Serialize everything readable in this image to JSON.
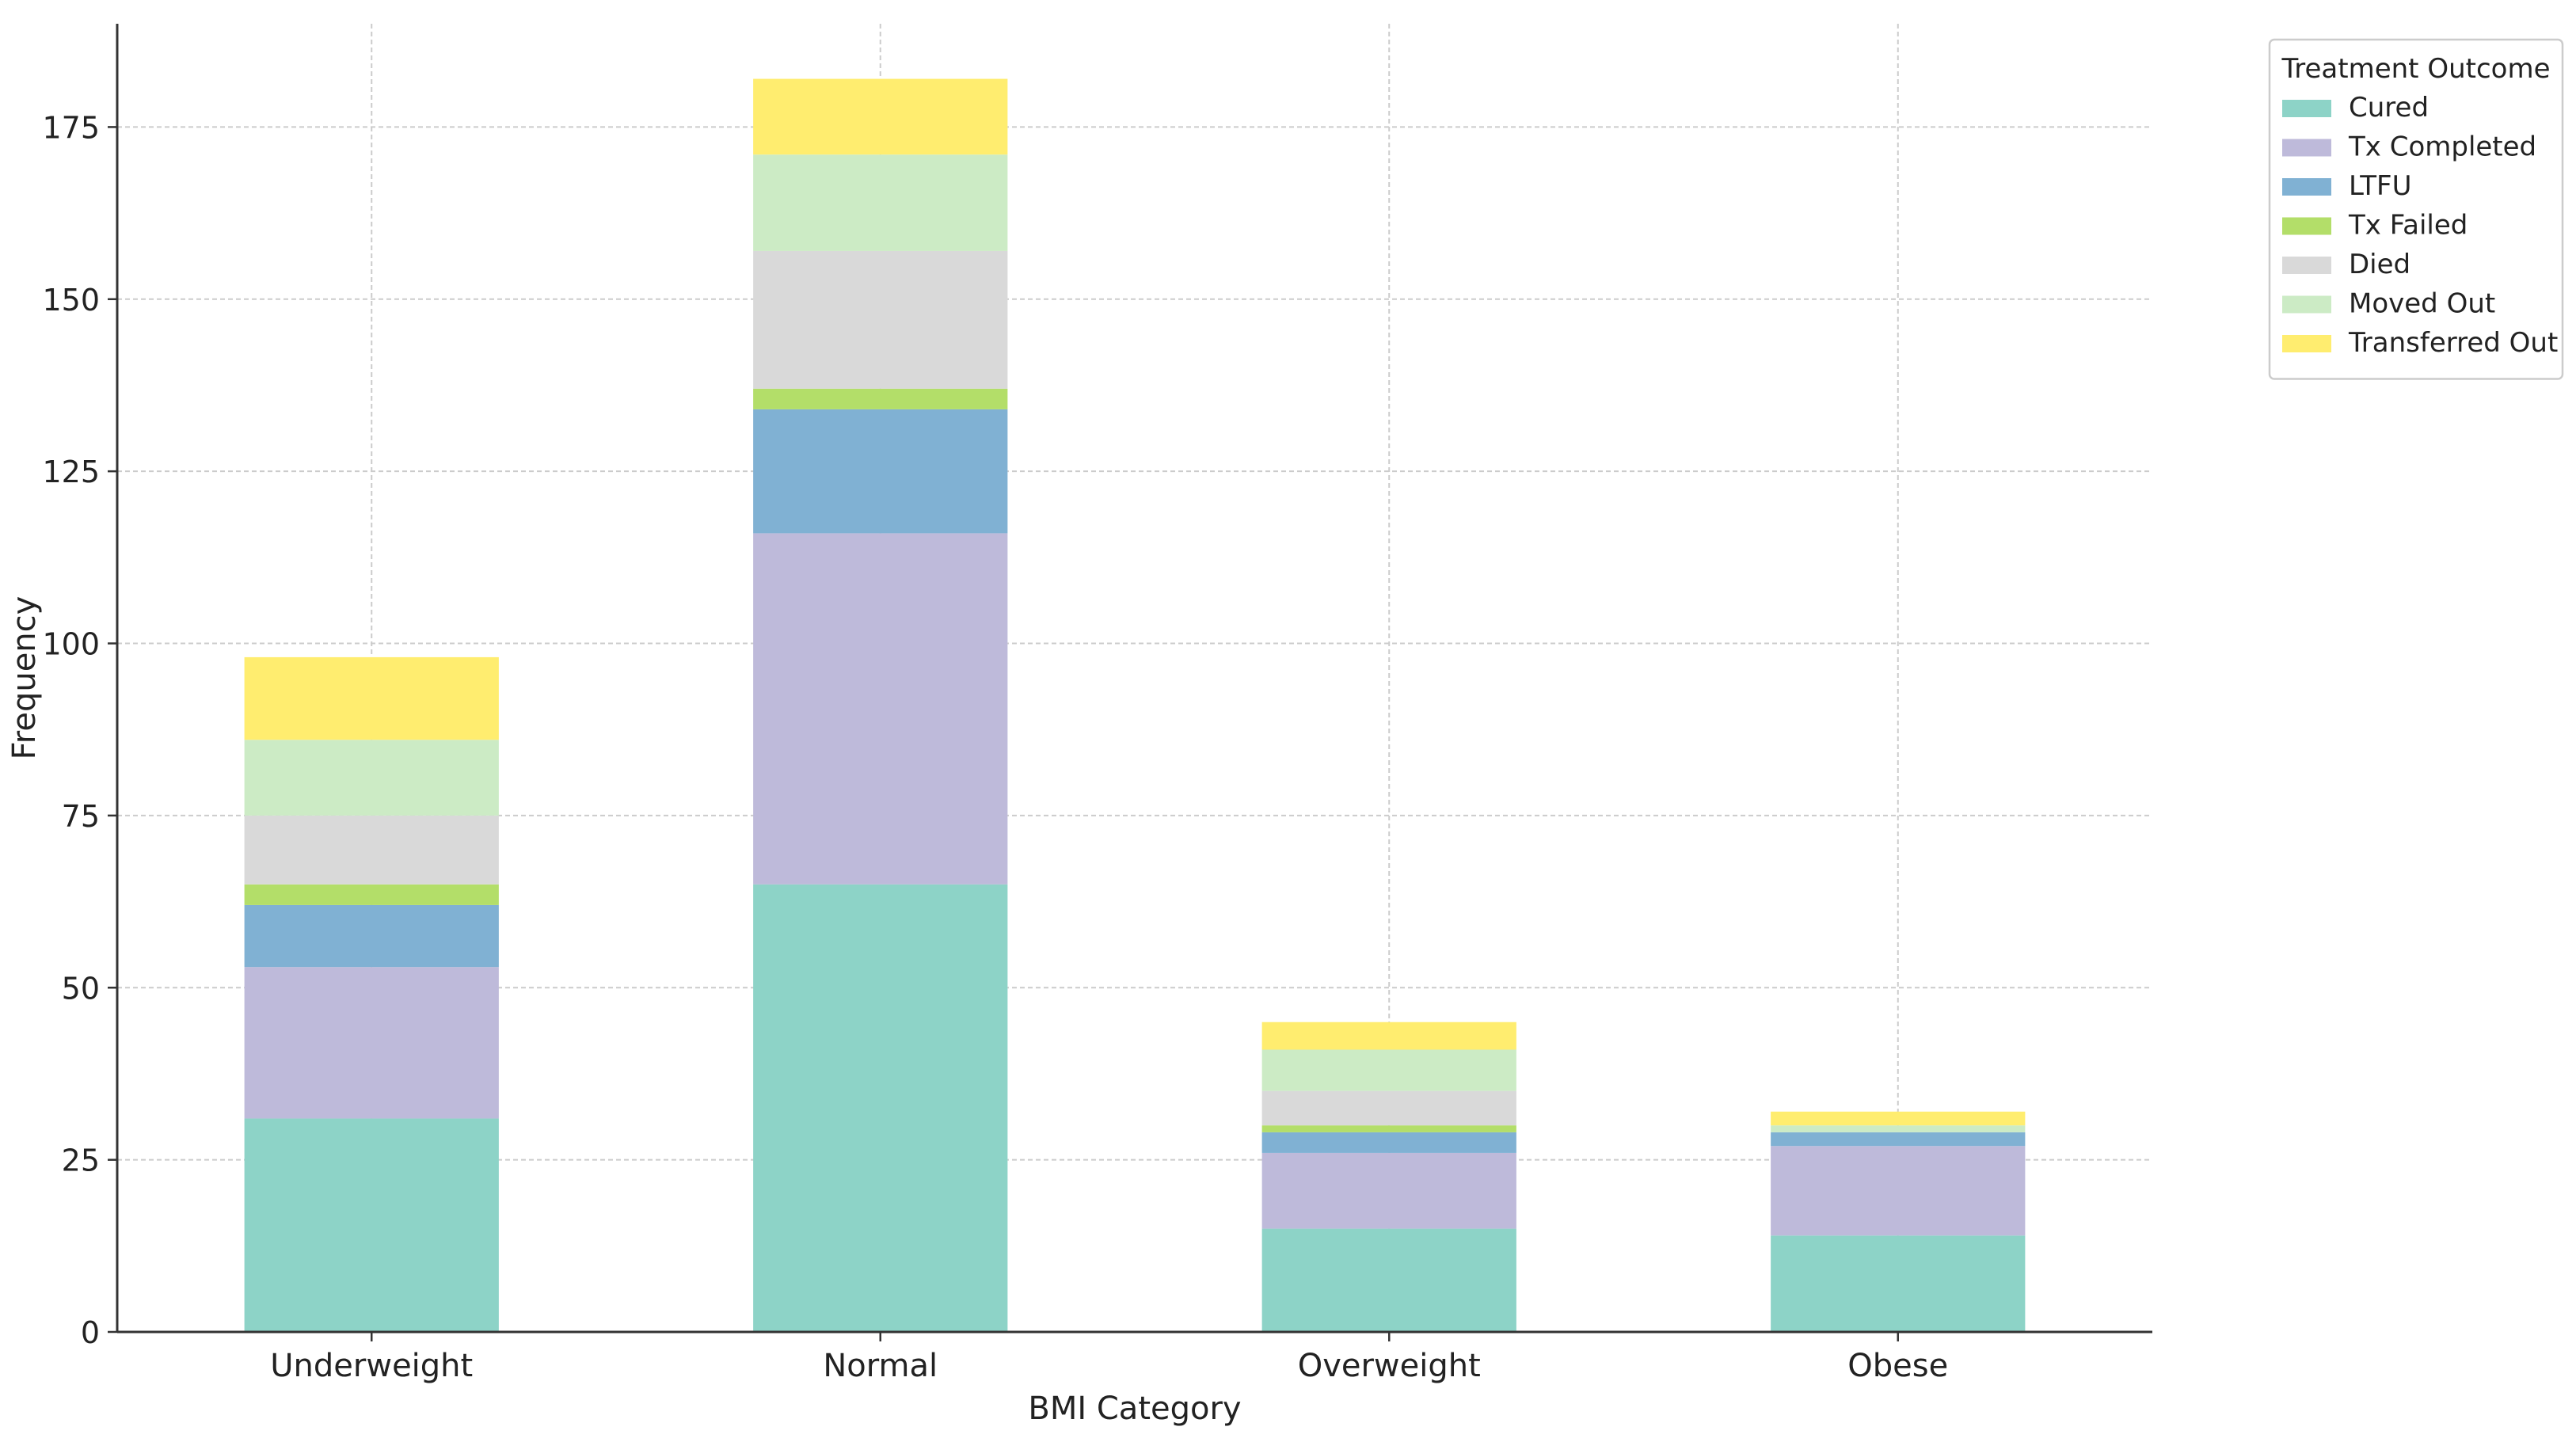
{
  "chart_data": {
    "type": "bar",
    "stacked": true,
    "title": "",
    "xlabel": "BMI Category",
    "ylabel": "Frequency",
    "ylim": [
      0,
      190
    ],
    "yticks": [
      0,
      25,
      50,
      75,
      100,
      125,
      150,
      175
    ],
    "grid": true,
    "legend_position": "outside top-right",
    "legend_title": "Treatment Outcome",
    "categories": [
      "Underweight",
      "Normal",
      "Overweight",
      "Obese"
    ],
    "series": [
      {
        "name": "Cured",
        "color": "#8dd3c7",
        "values": [
          31,
          65,
          15,
          14
        ]
      },
      {
        "name": "Tx Completed",
        "color": "#bebada",
        "values": [
          22,
          51,
          11,
          13
        ]
      },
      {
        "name": "LTFU",
        "color": "#80b1d3",
        "values": [
          9,
          18,
          3,
          2
        ]
      },
      {
        "name": "Tx Failed",
        "color": "#b3de69",
        "values": [
          3,
          3,
          1,
          0
        ]
      },
      {
        "name": "Died",
        "color": "#d9d9d9",
        "values": [
          10,
          20,
          5,
          0
        ]
      },
      {
        "name": "Moved Out",
        "color": "#ccebc5",
        "values": [
          11,
          14,
          6,
          1
        ]
      },
      {
        "name": "Transferred Out",
        "color": "#ffed6f",
        "values": [
          12,
          11,
          4,
          2
        ]
      }
    ]
  }
}
